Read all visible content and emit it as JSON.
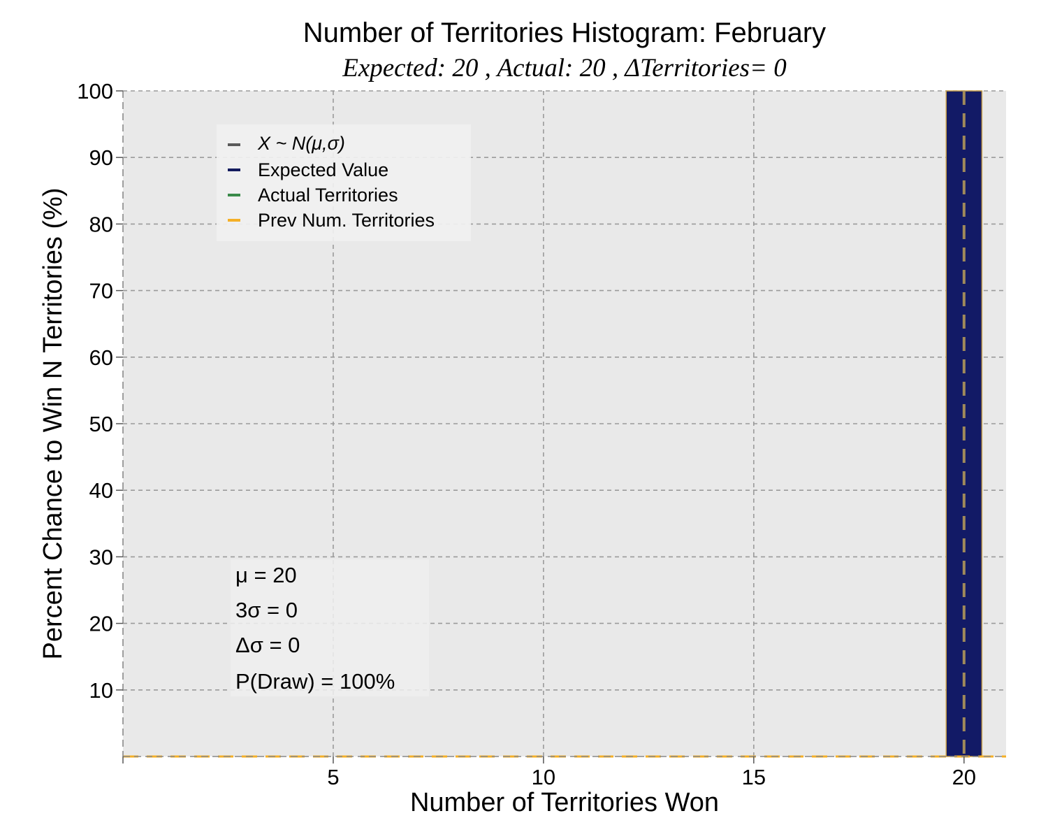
{
  "chart_data": {
    "type": "bar",
    "title": "Number of Territories Histogram: February",
    "subtitle": "Expected: 20 , Actual: 20 , ΔTerritories= 0",
    "xlabel": "Number of Territories Won",
    "ylabel": "Percent Chance to Win N Territories (%)",
    "xlim": [
      0,
      21
    ],
    "ylim": [
      0,
      100
    ],
    "xticks": [
      5,
      10,
      15,
      20
    ],
    "yticks": [
      10,
      20,
      30,
      40,
      50,
      60,
      70,
      80,
      90,
      100
    ],
    "grid": true,
    "bars": [
      {
        "x": 20,
        "value": 100
      }
    ],
    "bar_width": 0.85,
    "reference_lines": [
      {
        "legend_key": "expected",
        "orientation": "vertical",
        "x": 20
      },
      {
        "legend_key": "prev",
        "orientation": "horizontal",
        "y": 0
      }
    ],
    "legend": {
      "placement": "upper-left",
      "items": [
        {
          "key": "normal",
          "label": "X ~ N(μ,σ)",
          "color": "#5a5a5a",
          "italic": true
        },
        {
          "key": "expected",
          "label": "Expected Value",
          "color": "#131b5e",
          "italic": false
        },
        {
          "key": "actual",
          "label": "Actual Territories",
          "color": "#3a8a4a",
          "italic": false
        },
        {
          "key": "prev",
          "label": "Prev Num. Territories",
          "color": "#f5b027",
          "italic": false
        }
      ]
    },
    "stats_box": {
      "placement": "lower-left",
      "lines": [
        "μ = 20",
        "3σ = 0",
        "Δσ = 0",
        "P(Draw) = 100%"
      ]
    },
    "colors": {
      "plot_bg": "#e9e9e9",
      "bar_fill": "#121a66",
      "bar_edge": "#c8a04a",
      "grid": "#9a9a9a",
      "vline": "#a08a5a",
      "hline": "#f5b027"
    }
  }
}
